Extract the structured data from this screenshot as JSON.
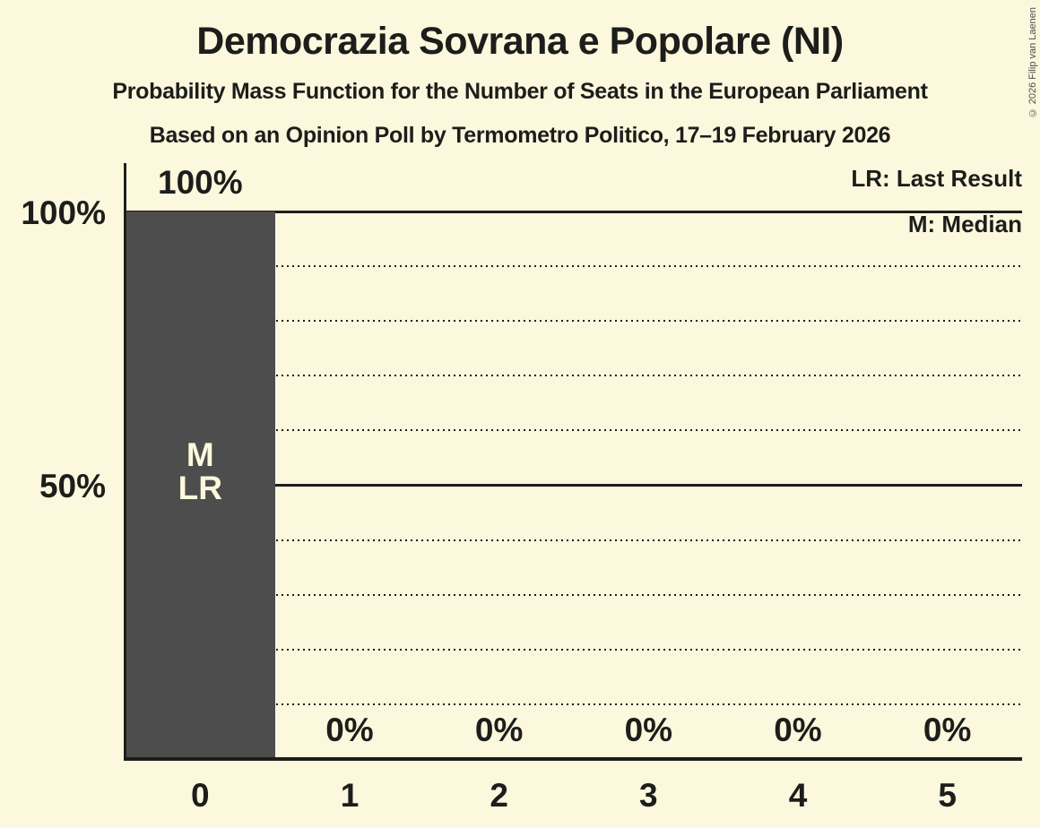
{
  "title": "Democrazia Sovrana e Popolare (NI)",
  "subtitle1": "Probability Mass Function for the Number of Seats in the European Parliament",
  "subtitle2": "Based on an Opinion Poll by Termometro Politico, 17–19 February 2026",
  "legend": {
    "last_result": "LR: Last Result",
    "median": "M: Median"
  },
  "copyright": "© 2026 Filip van Laenen",
  "colors": {
    "background": "#fcf8dd",
    "bar": "#4d4d4d",
    "text": "#1d1d1b",
    "grid": "#1d1d1b",
    "bar_label_text": "#fcf8dd"
  },
  "y_axis": {
    "ticks": [
      {
        "label": "100%",
        "value": 100
      },
      {
        "label": "50%",
        "value": 50
      }
    ]
  },
  "chart_data": {
    "type": "bar",
    "title": "Democrazia Sovrana e Popolare (NI)",
    "categories": [
      "0",
      "1",
      "2",
      "3",
      "4",
      "5"
    ],
    "values": [
      100,
      0,
      0,
      0,
      0,
      0
    ],
    "value_labels": [
      "100%",
      "0%",
      "0%",
      "0%",
      "0%",
      "0%"
    ],
    "ylim": [
      0,
      100
    ],
    "gridlines_percent": [
      10,
      20,
      30,
      40,
      50,
      60,
      70,
      80,
      90,
      100
    ],
    "solid_gridlines": [
      50,
      100
    ],
    "legend_position": "top-right",
    "annotation": {
      "category_index": 0,
      "lines": [
        "M",
        "LR"
      ],
      "meaning": "Median and Last Result at 0 seats"
    }
  }
}
